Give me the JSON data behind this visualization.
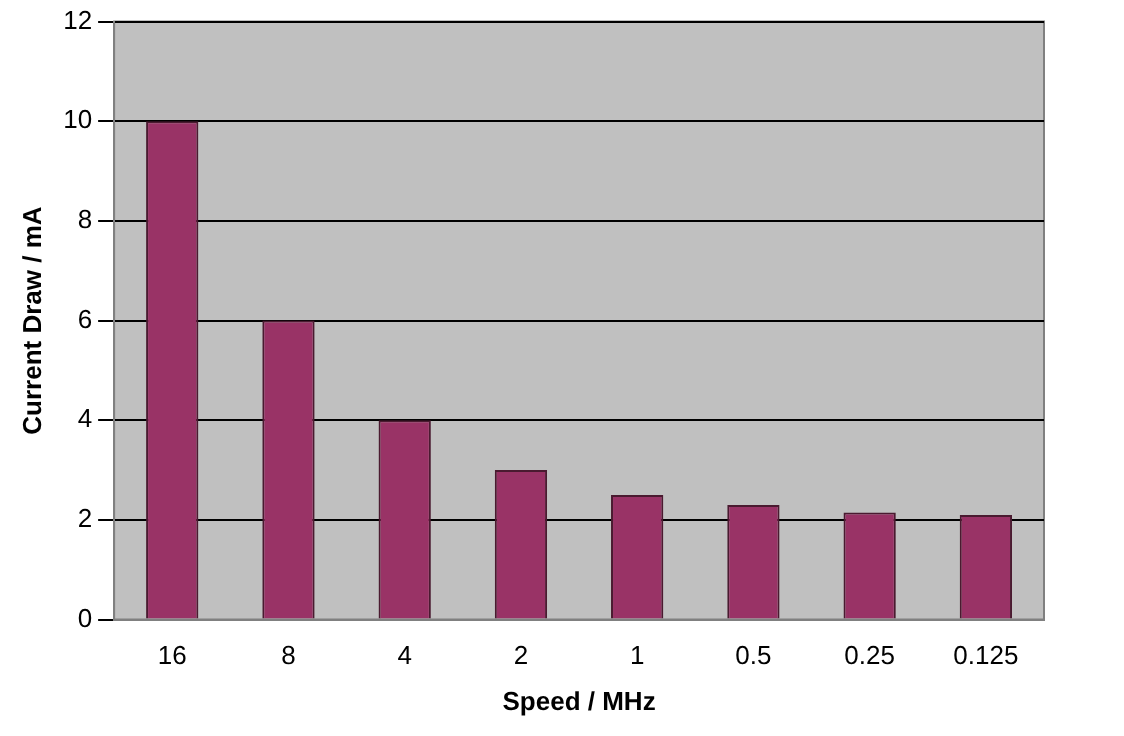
{
  "chart_data": {
    "type": "bar",
    "xlabel": "Speed / MHz",
    "ylabel": "Current Draw / mA",
    "categories": [
      "16",
      "8",
      "4",
      "2",
      "1",
      "0.5",
      "0.25",
      "0.125"
    ],
    "values": [
      10,
      6,
      4,
      3,
      2.5,
      2.3,
      2.15,
      2.1
    ],
    "color": "#993366",
    "ylim": [
      0,
      12
    ],
    "yticks": [
      0,
      2,
      4,
      6,
      8,
      10,
      12
    ],
    "grid": "y"
  }
}
